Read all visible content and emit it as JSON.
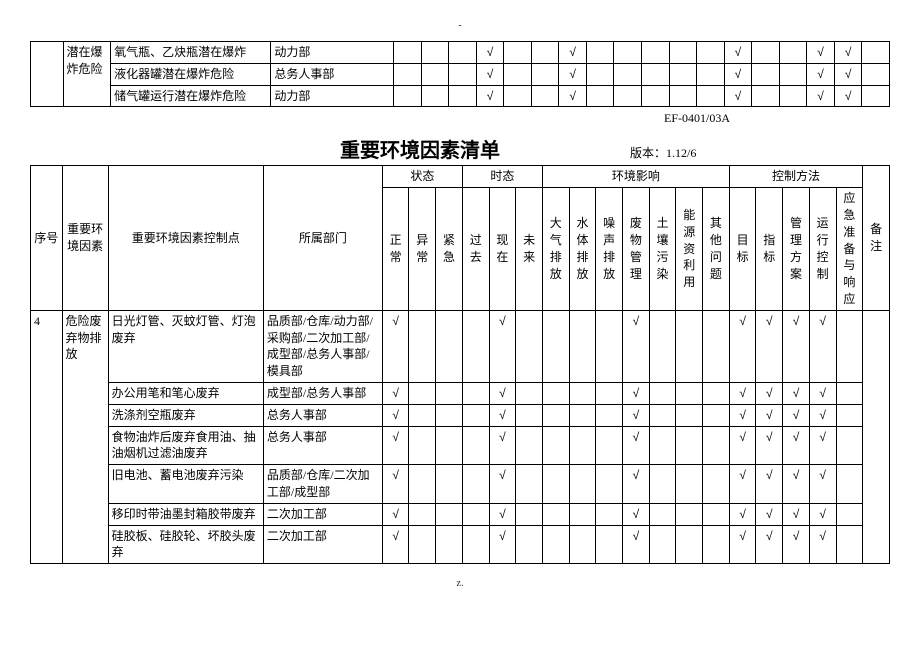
{
  "dot": "-",
  "dotBottom": "z.",
  "docCode": "EF-0401/03A",
  "title": "重要环境因素清单",
  "versionLabel": "版本：",
  "version": "1.12/6",
  "checkMark": "√",
  "topTable": {
    "col1": "潜在爆炸危险",
    "rows": [
      {
        "control": "氧气瓶、乙炔瓶潜在爆炸",
        "dept": "动力部",
        "marks": [
          "",
          "",
          "",
          "√",
          "",
          "",
          "√",
          "",
          "",
          "",
          "",
          "",
          "√",
          "",
          "",
          "√",
          "√",
          ""
        ]
      },
      {
        "control": "液化器罐潜在爆炸危险",
        "dept": "总务人事部",
        "marks": [
          "",
          "",
          "",
          "√",
          "",
          "",
          "√",
          "",
          "",
          "",
          "",
          "",
          "√",
          "",
          "",
          "√",
          "√",
          ""
        ]
      },
      {
        "control": "储气罐运行潜在爆炸危险",
        "dept": "动力部",
        "marks": [
          "",
          "",
          "",
          "√",
          "",
          "",
          "√",
          "",
          "",
          "",
          "",
          "",
          "√",
          "",
          "",
          "√",
          "√",
          ""
        ]
      }
    ]
  },
  "mainHeader": {
    "seq": "序号",
    "factor": "重要环境因素",
    "control": "重要环境因素控制点",
    "dept": "所属部门",
    "stateGroup": "状态",
    "timeGroup": "时态",
    "impactGroup": "环境影响",
    "methodGroup": "控制方法",
    "note": "备注",
    "state": [
      "正常",
      "异常",
      "紧急"
    ],
    "time": [
      "过去",
      "现在",
      "未来"
    ],
    "impact": [
      "大气排放",
      "水体排放",
      "噪声排放",
      "废物管理",
      "土壤污染",
      "能源资利用",
      "其他问题"
    ],
    "method": [
      "目标",
      "指标",
      "管理方案",
      "运行控制",
      "应急准备与响应"
    ]
  },
  "mainRows": {
    "seq": "4",
    "factor": "危险废弃物排放",
    "items": [
      {
        "control": "日光灯管、灭蚊灯管、灯泡废弃",
        "dept": "品质部/仓库/动力部/采购部/二次加工部/成型部/总务人事部/模具部",
        "marks": [
          "√",
          "",
          "",
          "",
          "√",
          "",
          "",
          "",
          "",
          "√",
          "",
          "",
          "",
          "√",
          "√",
          "√",
          "√",
          ""
        ]
      },
      {
        "control": "办公用笔和笔心废弃",
        "dept": "成型部/总务人事部",
        "marks": [
          "√",
          "",
          "",
          "",
          "√",
          "",
          "",
          "",
          "",
          "√",
          "",
          "",
          "",
          "√",
          "√",
          "√",
          "√",
          ""
        ]
      },
      {
        "control": "洗涤剂空瓶废弃",
        "dept": "总务人事部",
        "marks": [
          "√",
          "",
          "",
          "",
          "√",
          "",
          "",
          "",
          "",
          "√",
          "",
          "",
          "",
          "√",
          "√",
          "√",
          "√",
          ""
        ]
      },
      {
        "control": "食物油炸后废弃食用油、抽油烟机过滤油废弃",
        "dept": "总务人事部",
        "marks": [
          "√",
          "",
          "",
          "",
          "√",
          "",
          "",
          "",
          "",
          "√",
          "",
          "",
          "",
          "√",
          "√",
          "√",
          "√",
          ""
        ]
      },
      {
        "control": "旧电池、蓄电池废弃污染",
        "dept": "品质部/仓库/二次加工部/成型部",
        "marks": [
          "√",
          "",
          "",
          "",
          "√",
          "",
          "",
          "",
          "",
          "√",
          "",
          "",
          "",
          "√",
          "√",
          "√",
          "√",
          ""
        ]
      },
      {
        "control": "移印时带油墨封箱胶带废弃",
        "dept": "二次加工部",
        "marks": [
          "√",
          "",
          "",
          "",
          "√",
          "",
          "",
          "",
          "",
          "√",
          "",
          "",
          "",
          "√",
          "√",
          "√",
          "√",
          ""
        ]
      },
      {
        "control": "硅胶板、硅胶轮、坏胶头废弃",
        "dept": "二次加工部",
        "marks": [
          "√",
          "",
          "",
          "",
          "√",
          "",
          "",
          "",
          "",
          "√",
          "",
          "",
          "",
          "√",
          "√",
          "√",
          "√",
          ""
        ]
      }
    ]
  }
}
